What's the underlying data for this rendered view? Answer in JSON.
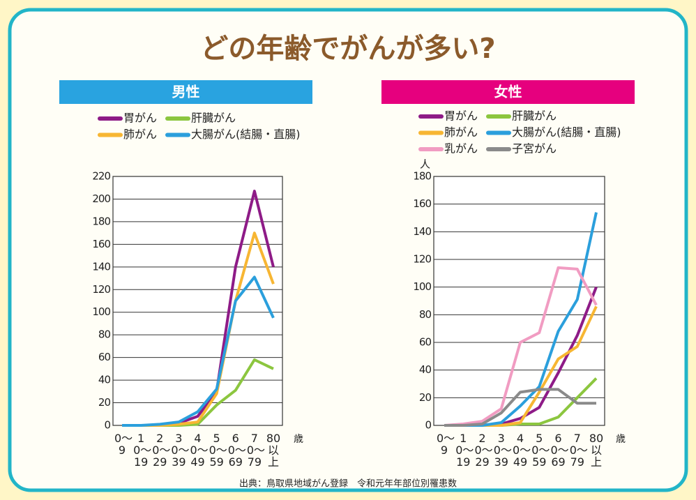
{
  "title": "どの年齢でがんが多い?",
  "source": "出典：鳥取県地域がん登録　令和元年年部位別罹患数",
  "chart_data": [
    {
      "type": "line",
      "title": "男性",
      "xlabel": "歳",
      "categories": [
        "0〜9",
        "10〜19",
        "20〜29",
        "30〜39",
        "40〜49",
        "50〜59",
        "60〜69",
        "70〜79",
        "80以上"
      ],
      "series": [
        {
          "name": "胃がん",
          "color": "#8e1b87",
          "values": [
            0,
            0,
            0,
            2,
            8,
            30,
            140,
            207,
            140
          ]
        },
        {
          "name": "肝臓がん",
          "color": "#8cc63f",
          "values": [
            0,
            0,
            0,
            0,
            1,
            18,
            31,
            58,
            50
          ]
        },
        {
          "name": "肺がん",
          "color": "#f7b633",
          "values": [
            0,
            0,
            0,
            1,
            3,
            28,
            110,
            170,
            125
          ]
        },
        {
          "name": "大腸がん(結腸・直腸)",
          "color": "#2b9fdc",
          "values": [
            0,
            0,
            1,
            3,
            12,
            32,
            110,
            131,
            95
          ]
        }
      ],
      "ylim": [
        0,
        220
      ],
      "yticks": [
        0,
        20,
        40,
        60,
        80,
        100,
        120,
        140,
        160,
        180,
        200,
        220
      ],
      "grid": true,
      "header_color": "#29a3e0"
    },
    {
      "type": "line",
      "title": "女性",
      "xlabel": "歳",
      "ylabel": "人",
      "categories": [
        "0〜9",
        "10〜19",
        "20〜29",
        "30〜39",
        "40〜49",
        "50〜59",
        "60〜69",
        "70〜79",
        "80以上"
      ],
      "series": [
        {
          "name": "胃がん",
          "color": "#8e1b87",
          "values": [
            0,
            0,
            0,
            1,
            5,
            13,
            38,
            65,
            100
          ]
        },
        {
          "name": "肝臓がん",
          "color": "#8cc63f",
          "values": [
            0,
            0,
            0,
            0,
            1,
            1,
            6,
            20,
            34
          ]
        },
        {
          "name": "肺がん",
          "color": "#f7b633",
          "values": [
            0,
            0,
            0,
            0,
            2,
            24,
            48,
            57,
            86
          ]
        },
        {
          "name": "大腸がん(結腸・直腸)",
          "color": "#2b9fdc",
          "values": [
            0,
            0,
            0,
            2,
            14,
            28,
            68,
            91,
            154
          ]
        },
        {
          "name": "乳がん",
          "color": "#f19cc2",
          "values": [
            0,
            1,
            3,
            12,
            60,
            67,
            114,
            113,
            87
          ]
        },
        {
          "name": "子宮がん",
          "color": "#8a8a8a",
          "values": [
            0,
            0,
            1,
            9,
            24,
            26,
            26,
            16,
            16
          ]
        }
      ],
      "ylim": [
        0,
        180
      ],
      "yticks": [
        0,
        20,
        40,
        60,
        80,
        100,
        120,
        140,
        160,
        180
      ],
      "grid": true,
      "header_color": "#e6007e"
    }
  ]
}
